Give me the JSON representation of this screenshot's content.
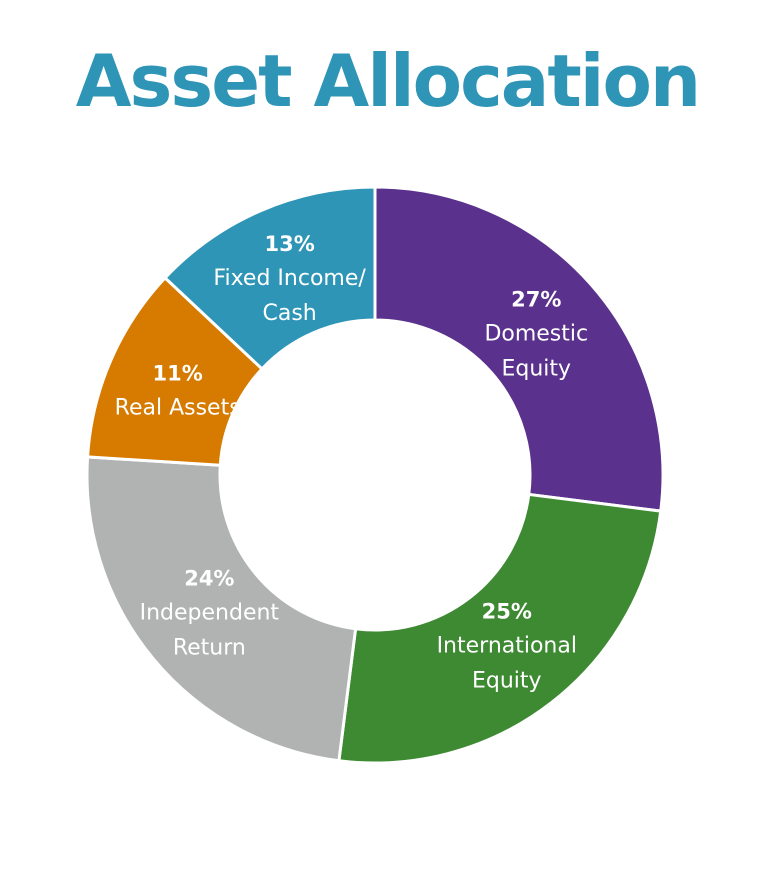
{
  "colors": {
    "title": "#2e95b7"
  },
  "chart_data": {
    "type": "pie",
    "donut": true,
    "title": "Asset Allocation",
    "slices": [
      {
        "pct_label": "27%",
        "value": 27,
        "lines": [
          "Domestic",
          "Equity"
        ],
        "color": "#5a318c"
      },
      {
        "pct_label": "25%",
        "value": 25,
        "lines": [
          "International",
          "Equity"
        ],
        "color": "#3d8a32"
      },
      {
        "pct_label": "24%",
        "value": 24,
        "lines": [
          "Independent",
          "Return"
        ],
        "color": "#b1b3b3"
      },
      {
        "pct_label": "11%",
        "value": 11,
        "lines": [
          "Real Assets"
        ],
        "color": "#d67a00"
      },
      {
        "pct_label": "13%",
        "value": 13,
        "lines": [
          "Fixed Income/",
          "Cash"
        ],
        "color": "#2e95b7"
      }
    ]
  }
}
